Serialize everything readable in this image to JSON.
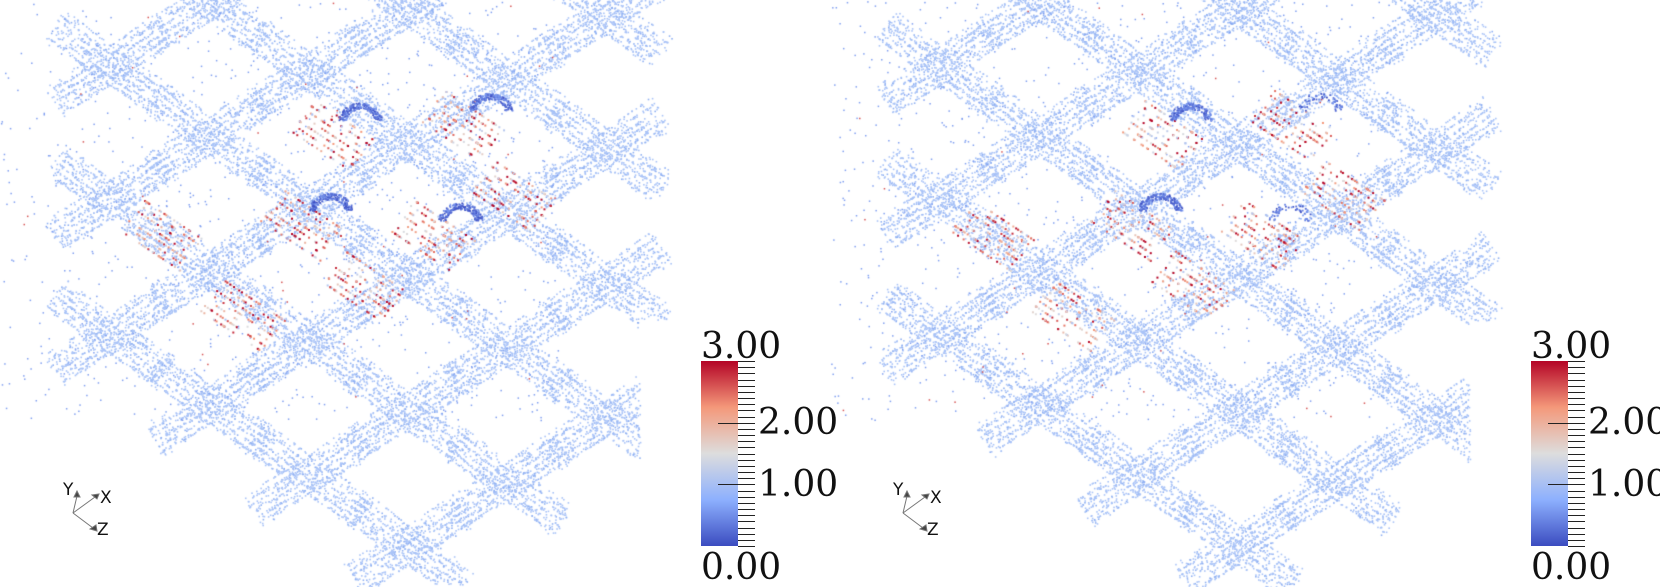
{
  "panels": [
    {
      "id": "left",
      "variant": "with-dark-blue-clusters"
    },
    {
      "id": "right",
      "variant": "fewer-dark-blue-clusters"
    }
  ],
  "colorbar": {
    "min_label": "0.00",
    "max_label": "3.00",
    "labels": [
      "2.00",
      "1.00"
    ],
    "range": [
      0,
      3
    ],
    "colormap": "cool-to-warm",
    "colors": [
      "#3b4cc0",
      "#8db0fe",
      "#dddddd",
      "#f4987a",
      "#b40426"
    ]
  },
  "axes": {
    "x": "X",
    "y": "Y",
    "z": "Z"
  },
  "point_color": "#a9c3f7"
}
